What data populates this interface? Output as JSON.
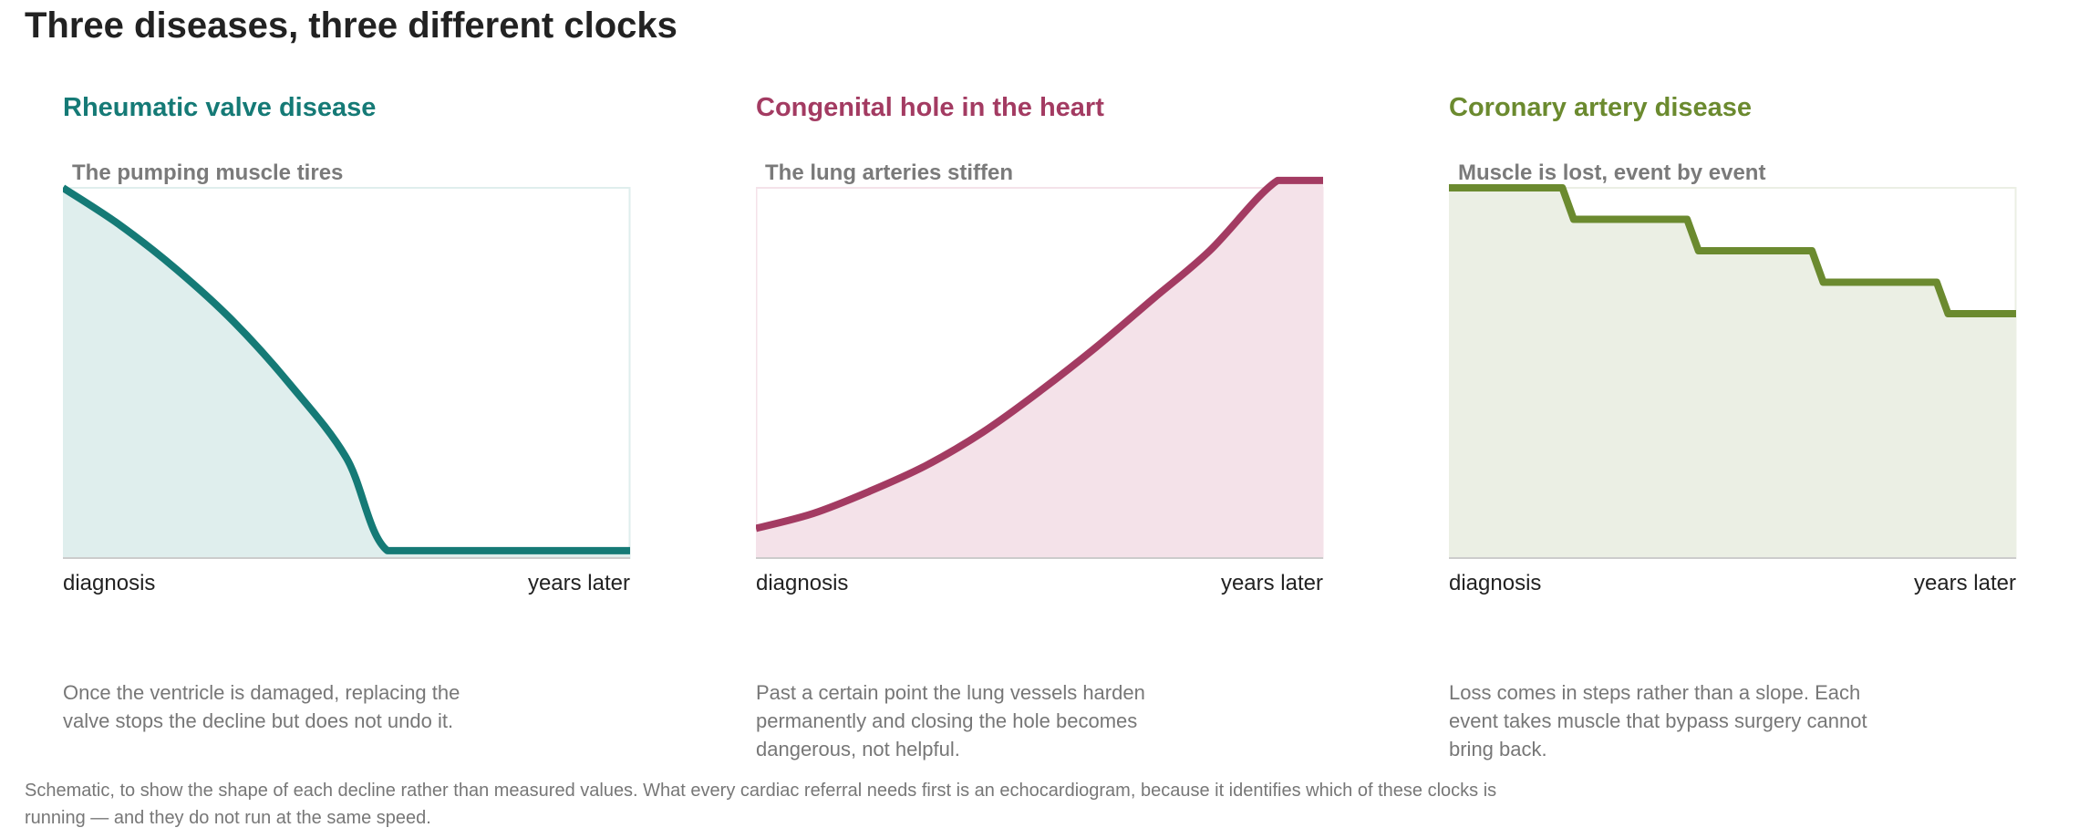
{
  "title": "Three diseases, three different clocks",
  "footnote": "Schematic, to show the shape of each decline rather than measured values. What every cardiac referral needs first is an echocardiogram, because it identifies which of these clocks is running — and they do not run at the same speed.",
  "chart_data": [
    {
      "type": "area",
      "title": "Rheumatic valve disease",
      "subtitle": "The pumping muscle tires",
      "color": "#157a76",
      "fill": "#dfeeed",
      "x_tick_labels": [
        "diagnosis",
        "years later"
      ],
      "xlim": [
        0,
        1
      ],
      "ylim": [
        0,
        1
      ],
      "x": [
        0,
        0.1,
        0.2,
        0.3,
        0.4,
        0.5,
        0.572,
        0.7,
        0.85,
        1.0
      ],
      "y": [
        1.0,
        0.9,
        0.78,
        0.64,
        0.47,
        0.27,
        0.02,
        0.02,
        0.02,
        0.02
      ],
      "caption": "Once the ventricle is damaged, replacing the valve stops the decline but does not undo it."
    },
    {
      "type": "area",
      "title": "Congenital hole in the heart",
      "subtitle": "The lung arteries stiffen",
      "color": "#a33b62",
      "fill": "#f4e2e9",
      "x_tick_labels": [
        "diagnosis",
        "years later"
      ],
      "xlim": [
        0,
        1
      ],
      "ylim": [
        0,
        1
      ],
      "x": [
        0,
        0.1,
        0.2,
        0.3,
        0.4,
        0.5,
        0.6,
        0.7,
        0.8,
        0.92,
        1.0
      ],
      "y": [
        0.08,
        0.12,
        0.18,
        0.25,
        0.34,
        0.45,
        0.57,
        0.7,
        0.83,
        1.02,
        1.02
      ],
      "caption": "Past a certain point the lung vessels harden permanently and closing the hole becomes dangerous, not helpful."
    },
    {
      "type": "area",
      "title": "Coronary artery disease",
      "subtitle": "Muscle is lost, event by event",
      "color": "#6b8a2f",
      "fill": "#ebefe4",
      "x_tick_labels": [
        "diagnosis",
        "years later"
      ],
      "xlim": [
        0,
        1
      ],
      "ylim": [
        0,
        1
      ],
      "x": [
        0,
        0.2,
        0.22,
        0.42,
        0.44,
        0.64,
        0.66,
        0.86,
        0.88,
        1.0
      ],
      "y": [
        1.0,
        1.0,
        0.915,
        0.915,
        0.83,
        0.83,
        0.745,
        0.745,
        0.66,
        0.66
      ],
      "caption": "Loss comes in steps rather than a slope. Each event takes muscle that bypass surgery cannot bring back."
    }
  ]
}
